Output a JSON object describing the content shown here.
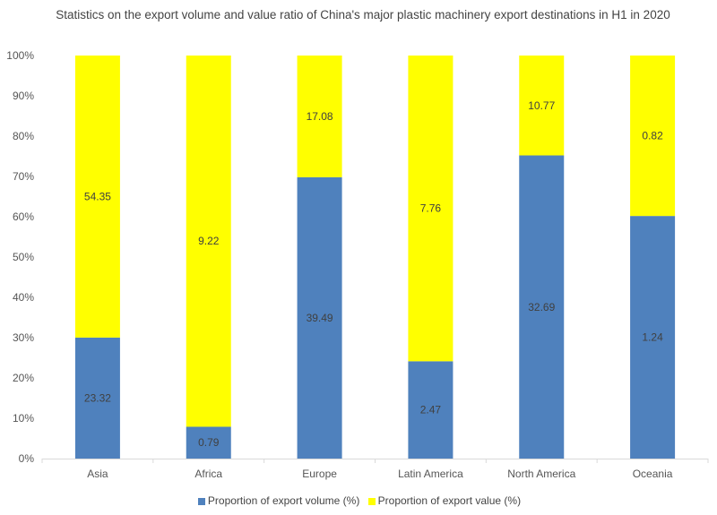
{
  "chart_data": {
    "type": "bar",
    "stacking": "percent",
    "title": "Statistics on the export volume and value ratio of China's major plastic machinery export destinations in H1 in 2020",
    "categories": [
      "Asia",
      "Africa",
      "Europe",
      "Latin America",
      "North America",
      "Oceania"
    ],
    "series": [
      {
        "name": "Proportion of export volume (%)",
        "color": "#4f81bd",
        "values": [
          23.32,
          0.79,
          39.49,
          2.47,
          32.69,
          1.24
        ]
      },
      {
        "name": "Proportion of export value (%)",
        "color": "#ffff00",
        "values": [
          54.35,
          9.22,
          17.08,
          7.76,
          10.77,
          0.82
        ]
      }
    ],
    "yticks": [
      "0%",
      "10%",
      "20%",
      "30%",
      "40%",
      "50%",
      "60%",
      "70%",
      "80%",
      "90%",
      "100%"
    ],
    "ylim": [
      0,
      100
    ],
    "grid": false,
    "legend": "bottom"
  }
}
